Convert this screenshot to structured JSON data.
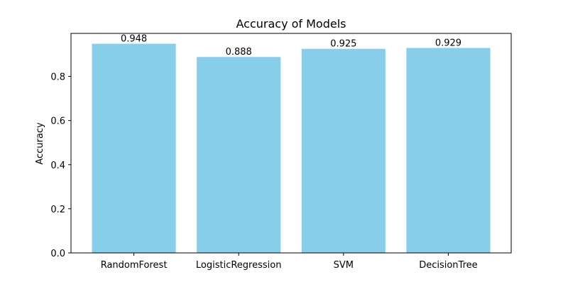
{
  "chart_data": {
    "type": "bar",
    "title": "Accuracy of Models",
    "xlabel": "",
    "ylabel": "Accuracy",
    "categories": [
      "RandomForest",
      "LogisticRegression",
      "SVM",
      "DecisionTree"
    ],
    "values": [
      0.948,
      0.888,
      0.925,
      0.929
    ],
    "value_labels": [
      "0.948",
      "0.888",
      "0.925",
      "0.929"
    ],
    "ylim": [
      0,
      0.995
    ],
    "yticks": [
      0.0,
      0.2,
      0.4,
      0.6,
      0.8
    ],
    "ytick_labels": [
      "0.0",
      "0.2",
      "0.4",
      "0.6",
      "0.8"
    ],
    "bar_color": "#87ceeb",
    "grid": false,
    "legend": "none"
  }
}
